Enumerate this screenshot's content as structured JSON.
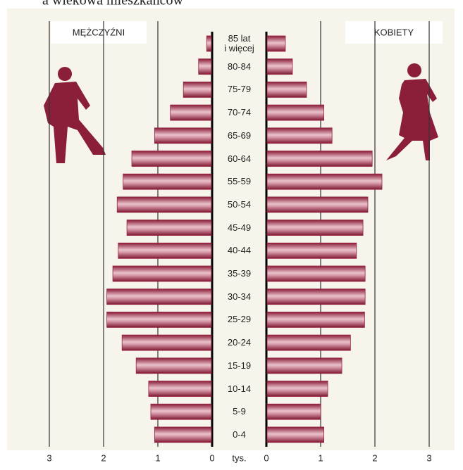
{
  "chart_data": {
    "type": "pyramid",
    "title": "a wiekowa mieszkańców",
    "categories": [
      "85 lat\ni więcej",
      "80-84",
      "75-79",
      "70-74",
      "65-69",
      "60-64",
      "55-59",
      "50-54",
      "45-49",
      "40-44",
      "35-39",
      "30-34",
      "25-29",
      "20-24",
      "15-19",
      "10-14",
      "5-9",
      "0-4"
    ],
    "series": [
      {
        "name": "MĘŻCZYŹNI",
        "color": "#96223f",
        "values": [
          0.1,
          0.25,
          0.53,
          0.77,
          1.06,
          1.48,
          1.64,
          1.75,
          1.57,
          1.73,
          1.83,
          1.94,
          1.94,
          1.66,
          1.4,
          1.17,
          1.13,
          1.06
        ]
      },
      {
        "name": "KOBIETY",
        "color": "#96223f",
        "values": [
          0.35,
          0.48,
          0.74,
          1.06,
          1.21,
          1.95,
          2.13,
          1.87,
          1.78,
          1.66,
          1.82,
          1.82,
          1.81,
          1.55,
          1.39,
          1.13,
          1.0,
          1.06
        ]
      }
    ],
    "xlabel": "tys.",
    "xlim": [
      0,
      3
    ],
    "xticks": [
      0,
      1,
      2,
      3
    ]
  }
}
